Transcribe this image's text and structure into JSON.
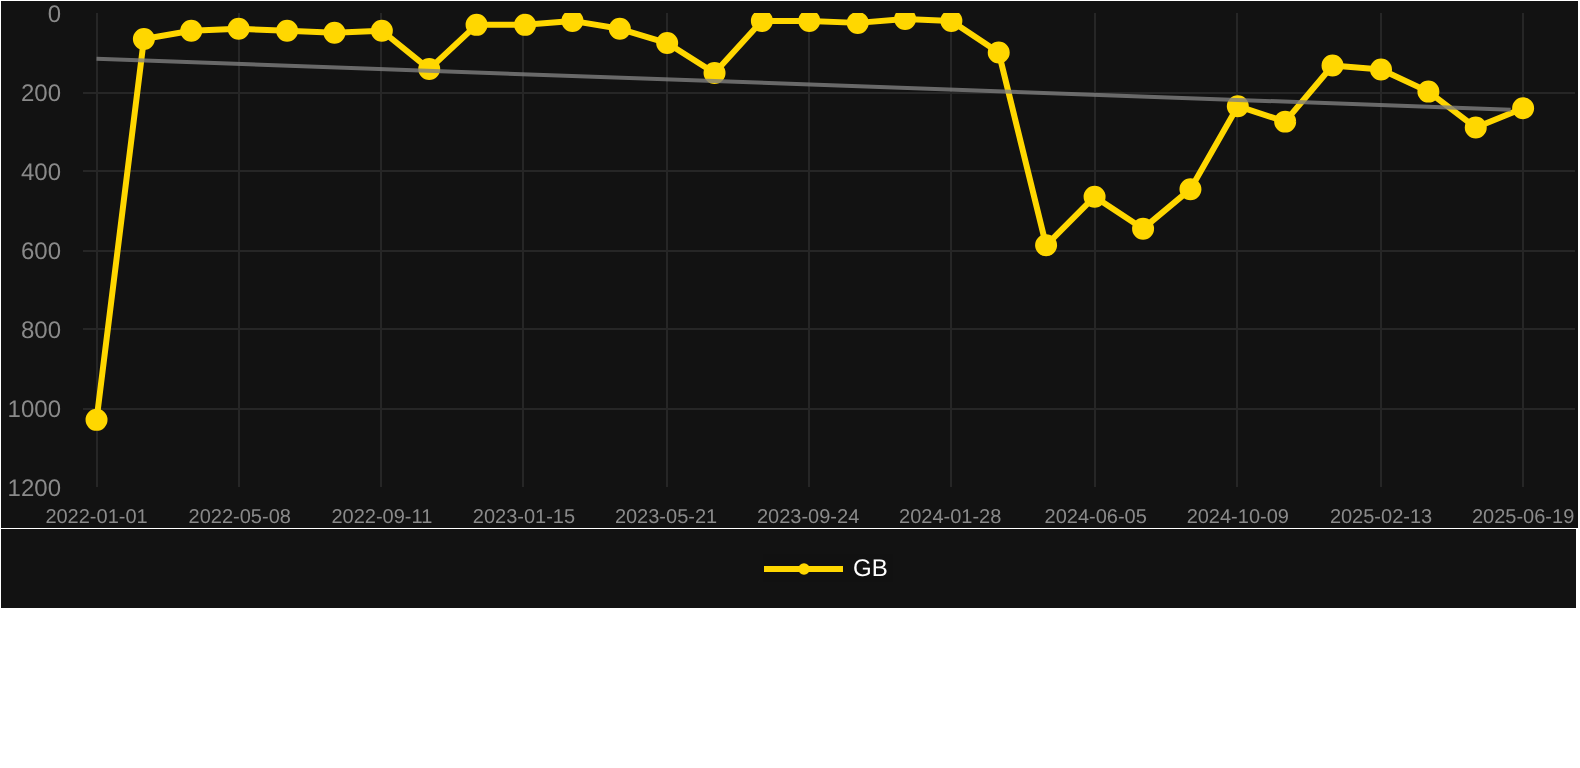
{
  "chart_data": {
    "type": "line",
    "x": [
      "2022-01-01",
      "2022-02-12",
      "2022-03-26",
      "2022-05-07",
      "2022-06-19",
      "2022-07-31",
      "2022-09-11",
      "2022-10-23",
      "2022-12-04",
      "2023-01-16",
      "2023-02-27",
      "2023-04-10",
      "2023-05-22",
      "2023-07-03",
      "2023-08-14",
      "2023-09-25",
      "2023-11-07",
      "2023-12-19",
      "2024-01-29",
      "2024-03-11",
      "2024-04-22",
      "2024-06-04",
      "2024-07-17",
      "2024-08-28",
      "2024-10-09",
      "2024-11-20",
      "2025-01-01",
      "2025-02-13",
      "2025-03-27",
      "2025-05-08",
      "2025-06-19"
    ],
    "series": [
      {
        "name": "GB",
        "color": "#ffd700",
        "marker": "circle",
        "values": [
          1030,
          66,
          45,
          40,
          45,
          50,
          45,
          142,
          30,
          30,
          20,
          40,
          76,
          152,
          20,
          20,
          25,
          15,
          20,
          100,
          588,
          465,
          546,
          446,
          236,
          275,
          133,
          143,
          199,
          290,
          241
        ]
      },
      {
        "type": "line",
        "color": "#808080",
        "marker": "none",
        "x": [
          "2022-01-01",
          "2025-06-08"
        ],
        "values": [
          116,
          245
        ]
      }
    ],
    "xlim": [
      "2021-12-20",
      "2025-08-04"
    ],
    "ylim": [
      1200,
      0
    ],
    "xticks": [
      "2022-01-01",
      "2022-05-08",
      "2022-09-11",
      "2023-01-15",
      "2023-05-21",
      "2023-09-24",
      "2024-01-28",
      "2024-06-05",
      "2024-10-09",
      "2025-02-13",
      "2025-06-19"
    ],
    "yticks": [
      0,
      200,
      400,
      600,
      800,
      1000,
      1200
    ],
    "grid": true,
    "legend": "bottom"
  }
}
